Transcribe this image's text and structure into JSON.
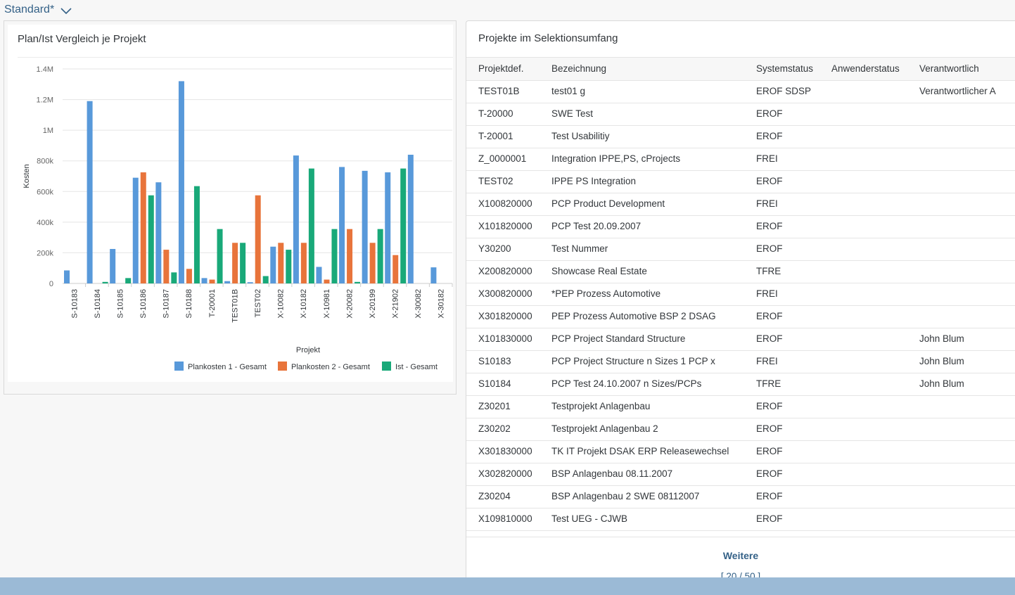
{
  "variant": {
    "label": "Standard*"
  },
  "chart_card": {
    "title": "Plan/Ist Vergleich je Projekt"
  },
  "chart_data": {
    "type": "bar",
    "title": "Plan/Ist Vergleich je Projekt",
    "xlabel": "Projekt",
    "ylabel": "Kosten",
    "ylim": [
      0,
      1400000
    ],
    "yticks": [
      0,
      200000,
      400000,
      600000,
      800000,
      1000000,
      1200000,
      1400000
    ],
    "ytick_labels": [
      "0",
      "200k",
      "400k",
      "600k",
      "800k",
      "1M",
      "1.2M",
      "1.4M"
    ],
    "grid": true,
    "legend_position": "bottom-right",
    "categories": [
      "S-10183",
      "S-10184",
      "S-10185",
      "S-10186",
      "S-10187",
      "S-10188",
      "T-20001",
      "TEST01B",
      "TEST02",
      "X-10082",
      "X-10182",
      "X-10981",
      "X-20082",
      "X-20199",
      "X-21902",
      "X-30082",
      "X-30182"
    ],
    "series": [
      {
        "name": "Plankosten 1 - Gesamt",
        "color": "#5899da",
        "values": [
          85000,
          1190000,
          225000,
          690000,
          660000,
          1320000,
          35000,
          15000,
          8000,
          240000,
          835000,
          108000,
          760000,
          735000,
          725000,
          840000,
          105000
        ]
      },
      {
        "name": "Plankosten 2 - Gesamt",
        "color": "#e8743b",
        "values": [
          0,
          0,
          0,
          725000,
          220000,
          95000,
          25000,
          265000,
          575000,
          265000,
          265000,
          25000,
          355000,
          265000,
          185000,
          0,
          0
        ]
      },
      {
        "name": "Ist - Gesamt",
        "color": "#19a979",
        "values": [
          0,
          10000,
          35000,
          575000,
          72000,
          635000,
          355000,
          265000,
          48000,
          220000,
          750000,
          355000,
          10000,
          355000,
          750000,
          0,
          0
        ]
      }
    ]
  },
  "table": {
    "title": "Projekte im Selektionsumfang",
    "columns": [
      "Projektdef.",
      "Bezeichnung",
      "Systemstatus",
      "Anwenderstatus",
      "Verantwortlich"
    ],
    "rows": [
      [
        "TEST01B",
        "test01 g",
        "EROF SDSP",
        "",
        "Verantwortlicher A"
      ],
      [
        "T-20000",
        "SWE Test",
        "EROF",
        "",
        ""
      ],
      [
        "T-20001",
        "Test Usabilitiy",
        "EROF",
        "",
        ""
      ],
      [
        "Z_0000001",
        "Integration IPPE,PS, cProjects",
        "FREI",
        "",
        ""
      ],
      [
        "TEST02",
        "IPPE PS Integration",
        "EROF",
        "",
        ""
      ],
      [
        "X100820000",
        "PCP Product Development",
        "FREI",
        "",
        ""
      ],
      [
        "X101820000",
        "PCP Test 20.09.2007",
        "EROF",
        "",
        ""
      ],
      [
        "Y30200",
        "Test Nummer",
        "EROF",
        "",
        ""
      ],
      [
        "X200820000",
        "Showcase Real Estate",
        "TFRE",
        "",
        ""
      ],
      [
        "X300820000",
        "*PEP Prozess Automotive",
        "FREI",
        "",
        ""
      ],
      [
        "X301820000",
        "PEP Prozess Automotive BSP 2 DSAG",
        "EROF",
        "",
        ""
      ],
      [
        "X101830000",
        "PCP Project Standard Structure",
        "EROF",
        "",
        "John Blum"
      ],
      [
        "S10183",
        "PCP Project Structure n Sizes 1 PCP x",
        "FREI",
        "",
        "John Blum"
      ],
      [
        "S10184",
        "PCP Test 24.10.2007 n Sizes/PCPs",
        "TFRE",
        "",
        "John Blum"
      ],
      [
        "Z30201",
        "Testprojekt Anlagenbau",
        "EROF",
        "",
        ""
      ],
      [
        "Z30202",
        "Testprojekt Anlagenbau 2",
        "EROF",
        "",
        ""
      ],
      [
        "X301830000",
        "TK IT Projekt DSAK ERP Releasewechsel",
        "EROF",
        "",
        ""
      ],
      [
        "X302820000",
        "BSP Anlagenbau 08.11.2007",
        "EROF",
        "",
        ""
      ],
      [
        "Z30204",
        "BSP Anlagenbau 2 SWE 08112007",
        "EROF",
        "",
        ""
      ],
      [
        "X109810000",
        "Test UEG - CJWB",
        "EROF",
        "",
        ""
      ]
    ],
    "more_label": "Weitere",
    "count_label": "[ 20 / 50 ]"
  }
}
